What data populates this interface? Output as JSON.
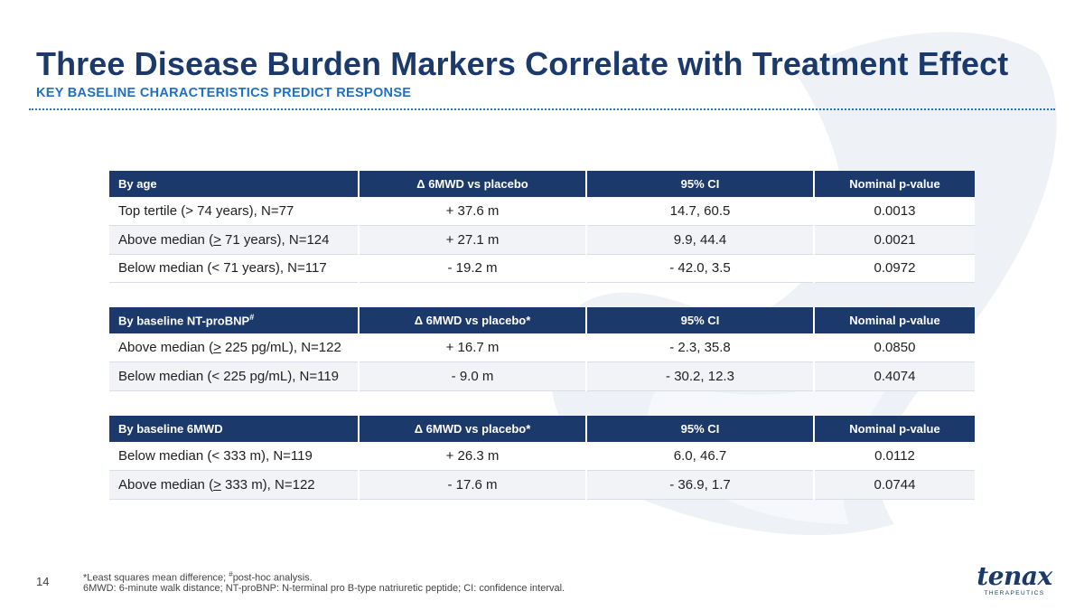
{
  "slide": {
    "title": "Three Disease Burden Markers Correlate with Treatment Effect",
    "subtitle": "KEY BASELINE CHARACTERISTICS PREDICT RESPONSE",
    "page_number": "14"
  },
  "tables": [
    {
      "headers": [
        "By age",
        "Δ 6MWD vs placebo",
        "95% CI",
        "Nominal p-value"
      ],
      "rows": [
        [
          "Top tertile (> 74 years), N=77",
          "+ 37.6 m",
          "14.7, 60.5",
          "0.0013"
        ],
        [
          "Above median (> 71 years), N=124",
          "+ 27.1 m",
          "9.9, 44.4",
          "0.0021"
        ],
        [
          "Below median (< 71 years), N=117",
          "- 19.2 m",
          "- 42.0, 3.5",
          "0.0972"
        ]
      ]
    },
    {
      "headers": [
        "By baseline NT-proBNP",
        "Δ 6MWD vs placebo*",
        "95% CI",
        "Nominal p-value"
      ],
      "header_superscript": "#",
      "rows": [
        [
          "Above median (> 225 pg/mL), N=122",
          "+ 16.7 m",
          "- 2.3, 35.8",
          "0.0850"
        ],
        [
          "Below median (< 225 pg/mL), N=119",
          "- 9.0 m",
          "- 30.2, 12.3",
          "0.4074"
        ]
      ]
    },
    {
      "headers": [
        "By baseline 6MWD",
        "Δ 6MWD vs placebo*",
        "95% CI",
        "Nominal p-value"
      ],
      "rows": [
        [
          "Below median (< 333 m), N=119",
          "+ 26.3 m",
          "6.0, 46.7",
          "0.0112"
        ],
        [
          "Above median (> 333 m), N=122",
          "- 17.6 m",
          "- 36.9, 1.7",
          "0.0744"
        ]
      ]
    }
  ],
  "footnotes": {
    "line1_a": "*Least squares mean difference; ",
    "line1_sup": "#",
    "line1_b": "post-hoc analysis.",
    "line2": "6MWD: 6-minute walk distance; NT-proBNP: N-terminal pro B-type natriuretic peptide; CI: confidence interval."
  },
  "logo": {
    "word": "tenax",
    "sub": "THERAPEUTICS"
  },
  "colors": {
    "navy": "#1b3a6b",
    "accent_blue": "#1f6fc5",
    "row_alt": "#f1f3f7",
    "watermark": "#eef2f7"
  },
  "icons": {
    "watermark": "tenax-t-watermark"
  }
}
